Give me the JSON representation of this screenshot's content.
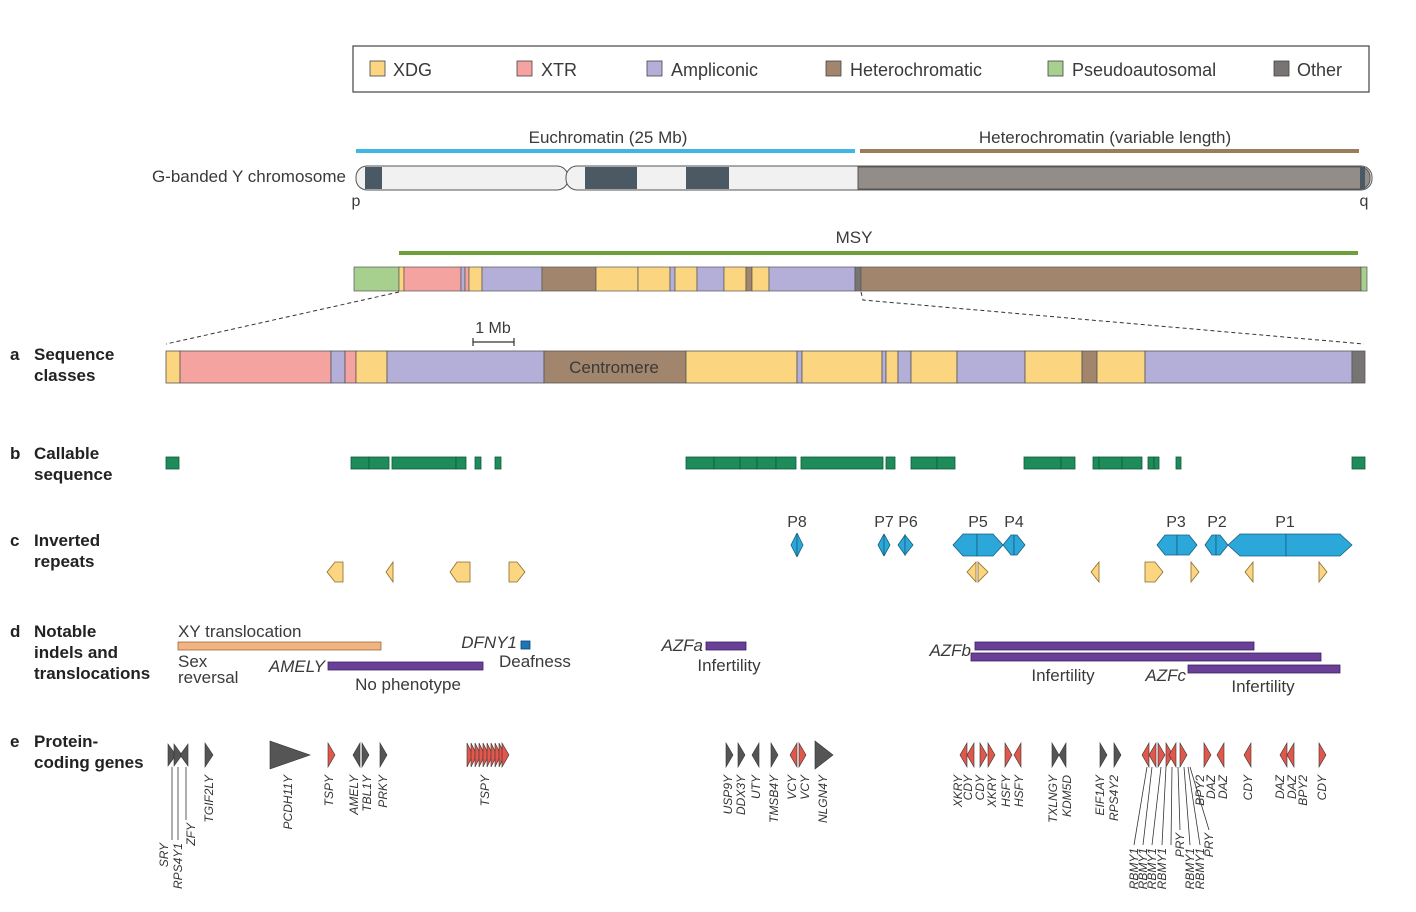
{
  "colors": {
    "xdg": "#fcd581",
    "xtr": "#f5a3a0",
    "ampliconic": "#b4afd9",
    "heterochromatic": "#a1856c",
    "pseudoautosomal": "#a7cf8d",
    "other": "#787474",
    "euchromatin_bar": "#3fb7e4",
    "heterochromatin_bar": "#9c7d5a",
    "msy_bar": "#6e9f3b",
    "band_dark": "#4a5964",
    "callable": "#1e8c5a",
    "repeat": "#2ba7d9",
    "repeat_small": "#fcd581",
    "indel_orange": "#f1b482",
    "indel_purple": "#6a3f98",
    "gene_grey": "#555555",
    "gene_red": "#e1574b"
  },
  "legend": {
    "items": [
      {
        "key": "xdg",
        "label": "XDG"
      },
      {
        "key": "xtr",
        "label": "XTR"
      },
      {
        "key": "ampliconic",
        "label": "Ampliconic"
      },
      {
        "key": "heterochromatic",
        "label": "Heterochromatic"
      },
      {
        "key": "pseudoautosomal",
        "label": "Pseudoautosomal"
      },
      {
        "key": "other",
        "label": "Other"
      }
    ]
  },
  "chromosome": {
    "label": "G-banded Y chromosome",
    "euchromatin_label": "Euchromatin (25 Mb)",
    "heterochromatin_label": "Heterochromatin (variable length)",
    "p_label": "p",
    "q_label": "q",
    "msy_label": "MSY"
  },
  "scale": {
    "label": "1 Mb"
  },
  "sections": {
    "a": {
      "letter": "a",
      "line1": "Sequence",
      "line2": "classes"
    },
    "b": {
      "letter": "b",
      "line1": "Callable",
      "line2": "sequence"
    },
    "c": {
      "letter": "c",
      "line1": "Inverted",
      "line2": "repeats"
    },
    "d": {
      "letter": "d",
      "line1": "Notable",
      "line2": "indels and",
      "line3": "translocations"
    },
    "e": {
      "letter": "e",
      "line1": "Protein-",
      "line2": "coding genes"
    }
  },
  "centromere_label": "Centromere",
  "palindromes": [
    "P8",
    "P7",
    "P6",
    "P5",
    "P4",
    "P3",
    "P2",
    "P1"
  ],
  "indels": {
    "xy_translocation": "XY translocation",
    "sex_reversal_1": "Sex",
    "sex_reversal_2": "reversal",
    "amely": "AMELY",
    "no_phenotype": "No phenotype",
    "dfny1": "DFNY1",
    "deafness": "Deafness",
    "azfa": "AZFa",
    "infertility_a": "Infertility",
    "azfb": "AZFb",
    "infertility_b": "Infertility",
    "azfc": "AZFc",
    "infertility_c": "Infertility"
  },
  "genes": [
    "SRY",
    "RPS4Y1",
    "ZFY",
    "TGIF2LY",
    "PCDH11Y",
    "TSPY",
    "AMELY",
    "TBL1Y",
    "PRKY",
    "TSPY",
    "USP9Y",
    "DDX3Y",
    "UTY",
    "TMSB4Y",
    "VCY",
    "VCY",
    "NLGN4Y",
    "XKRY",
    "CDY",
    "CDY",
    "XKRY",
    "HSFY",
    "HSFY",
    "TXLNGY",
    "KDM5D",
    "EIF1AY",
    "RPS4Y2",
    "RBMY1",
    "RBMY1",
    "RBMY1",
    "RBMY1",
    "PRY",
    "RBMY1",
    "RBMY1",
    "PRY",
    "BPY2",
    "DAZ",
    "DAZ",
    "CDY",
    "DAZ",
    "DAZ",
    "BPY2",
    "CDY"
  ]
}
